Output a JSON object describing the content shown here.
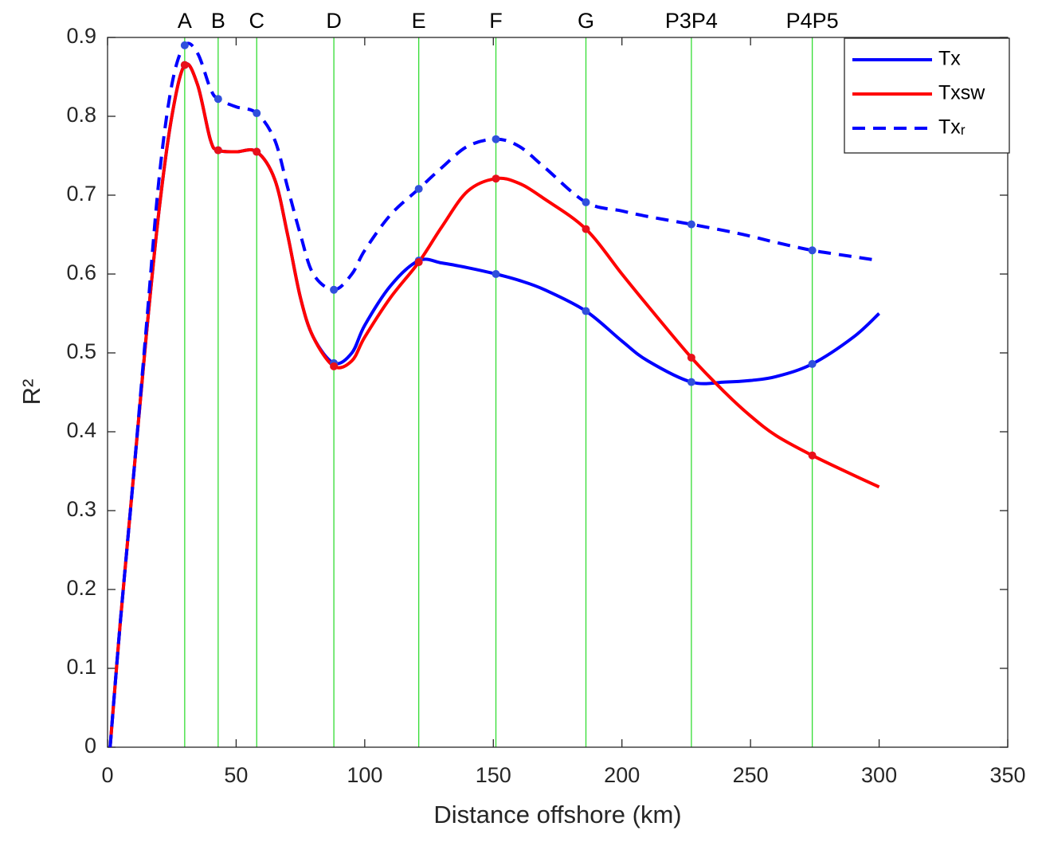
{
  "chart_data": {
    "type": "line",
    "xlabel": "Distance offshore (km)",
    "ylabel": "R²",
    "x": [
      1,
      5,
      10,
      15,
      20,
      25,
      30,
      35,
      40,
      43,
      50,
      58,
      65,
      70,
      75,
      80,
      88,
      95,
      100,
      110,
      121,
      130,
      140,
      151,
      160,
      170,
      186,
      200,
      210,
      227,
      240,
      250,
      260,
      274,
      290,
      300
    ],
    "series": [
      {
        "name": "Tx",
        "color": "#0000ff",
        "dash": false,
        "marker_color": "#3050dc",
        "values": [
          0,
          0.16,
          0.34,
          0.52,
          0.68,
          0.8,
          0.865,
          0.84,
          0.77,
          0.757,
          0.755,
          0.755,
          0.72,
          0.65,
          0.57,
          0.52,
          0.487,
          0.5,
          0.535,
          0.585,
          0.617,
          0.614,
          0.608,
          0.6,
          0.592,
          0.58,
          0.553,
          0.515,
          0.49,
          0.463,
          0.463,
          0.465,
          0.47,
          0.486,
          0.52,
          0.55
        ]
      },
      {
        "name": "Txsw",
        "color": "#ff0000",
        "dash": false,
        "marker_color": "#e8101a",
        "values": [
          0,
          0.16,
          0.34,
          0.52,
          0.68,
          0.8,
          0.865,
          0.84,
          0.77,
          0.757,
          0.755,
          0.755,
          0.72,
          0.65,
          0.57,
          0.52,
          0.483,
          0.49,
          0.52,
          0.57,
          0.615,
          0.66,
          0.705,
          0.721,
          0.715,
          0.695,
          0.657,
          0.6,
          0.56,
          0.494,
          0.45,
          0.42,
          0.395,
          0.37,
          0.345,
          0.33
        ]
      },
      {
        "name": "Txᵣ",
        "color": "#0000ff",
        "dash": true,
        "marker_color": "#3050dc",
        "values": [
          0,
          0.16,
          0.34,
          0.53,
          0.72,
          0.84,
          0.89,
          0.88,
          0.835,
          0.822,
          0.812,
          0.804,
          0.77,
          0.71,
          0.65,
          0.6,
          0.58,
          0.6,
          0.63,
          0.675,
          0.708,
          0.735,
          0.762,
          0.771,
          0.762,
          0.735,
          0.691,
          0.68,
          0.673,
          0.663,
          0.655,
          0.648,
          0.64,
          0.63,
          0.622,
          0.617
        ]
      }
    ],
    "stations": {
      "labels": [
        "A",
        "B",
        "C",
        "D",
        "E",
        "F",
        "G",
        "P3P4",
        "P4P5"
      ],
      "x": [
        30,
        43,
        58,
        88,
        121,
        151,
        186,
        227,
        274
      ],
      "color": "#33dd33"
    },
    "xlim": [
      0,
      350
    ],
    "xticks": [
      0,
      50,
      100,
      150,
      200,
      250,
      300,
      350
    ],
    "ylim": [
      0,
      0.9
    ],
    "yticks": [
      0,
      0.1,
      0.2,
      0.3,
      0.4,
      0.5,
      0.6,
      0.7,
      0.8,
      0.9
    ],
    "legend": "upper right"
  }
}
